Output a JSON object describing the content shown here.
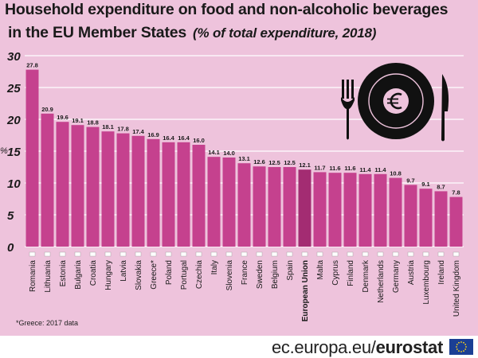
{
  "title_line1": "Household expenditure on food and non-alcoholic beverages",
  "title_line2": "in the EU Member States",
  "subtitle": "(% of total expenditure, 2018)",
  "footnote": "*Greece: 2017 data",
  "footer": {
    "site_prefix": "ec.europa.eu/",
    "site_brand": "eurostat"
  },
  "colors": {
    "background": "#eec3dc",
    "bar": "#c5418e",
    "bar_highlight": "#a32c72",
    "grid": "#ffffff",
    "text": "#1a1a1a"
  },
  "icons": [
    "fork-icon",
    "plate-icon",
    "euro-icon",
    "knife-icon",
    "eu-flag-icon"
  ],
  "chart_data": {
    "type": "bar",
    "ylabel": "%",
    "ylim": [
      0,
      30
    ],
    "yticks": [
      0,
      5,
      10,
      15,
      20,
      25,
      30
    ],
    "grid": true,
    "highlight": "European Union",
    "categories": [
      "Romania",
      "Lithuania",
      "Estonia",
      "Bulgaria",
      "Croatia",
      "Hungary",
      "Latvia",
      "Slovakia",
      "Greece*",
      "Poland",
      "Portugal",
      "Czechia",
      "Italy",
      "Slovenia",
      "France",
      "Sweden",
      "Belgium",
      "Spain",
      "European Union",
      "Malta",
      "Cyprus",
      "Finland",
      "Denmark",
      "Netherlands",
      "Germany",
      "Austria",
      "Luxembourg",
      "Ireland",
      "United Kingdom"
    ],
    "values": [
      27.8,
      20.9,
      19.6,
      19.1,
      18.8,
      18.1,
      17.8,
      17.4,
      16.9,
      16.4,
      16.4,
      16.0,
      14.1,
      14.0,
      13.1,
      12.6,
      12.5,
      12.5,
      12.1,
      11.7,
      11.6,
      11.6,
      11.4,
      11.4,
      10.8,
      9.7,
      9.1,
      8.7,
      7.8
    ],
    "value_labels": [
      "27.8",
      "20.9",
      "19.6",
      "19.1",
      "18.8",
      "18.1",
      "17.8",
      "17.4",
      "16.9",
      "16.4",
      "16.4",
      "16.0",
      "14.1",
      "14.0",
      "13.1",
      "12.6",
      "12.5",
      "12.5",
      "12.1",
      "11.7",
      "11.6",
      "11.6",
      "11.4",
      "11.4",
      "10.8",
      "9.7",
      "9.1",
      "8.7",
      "7.8"
    ]
  }
}
